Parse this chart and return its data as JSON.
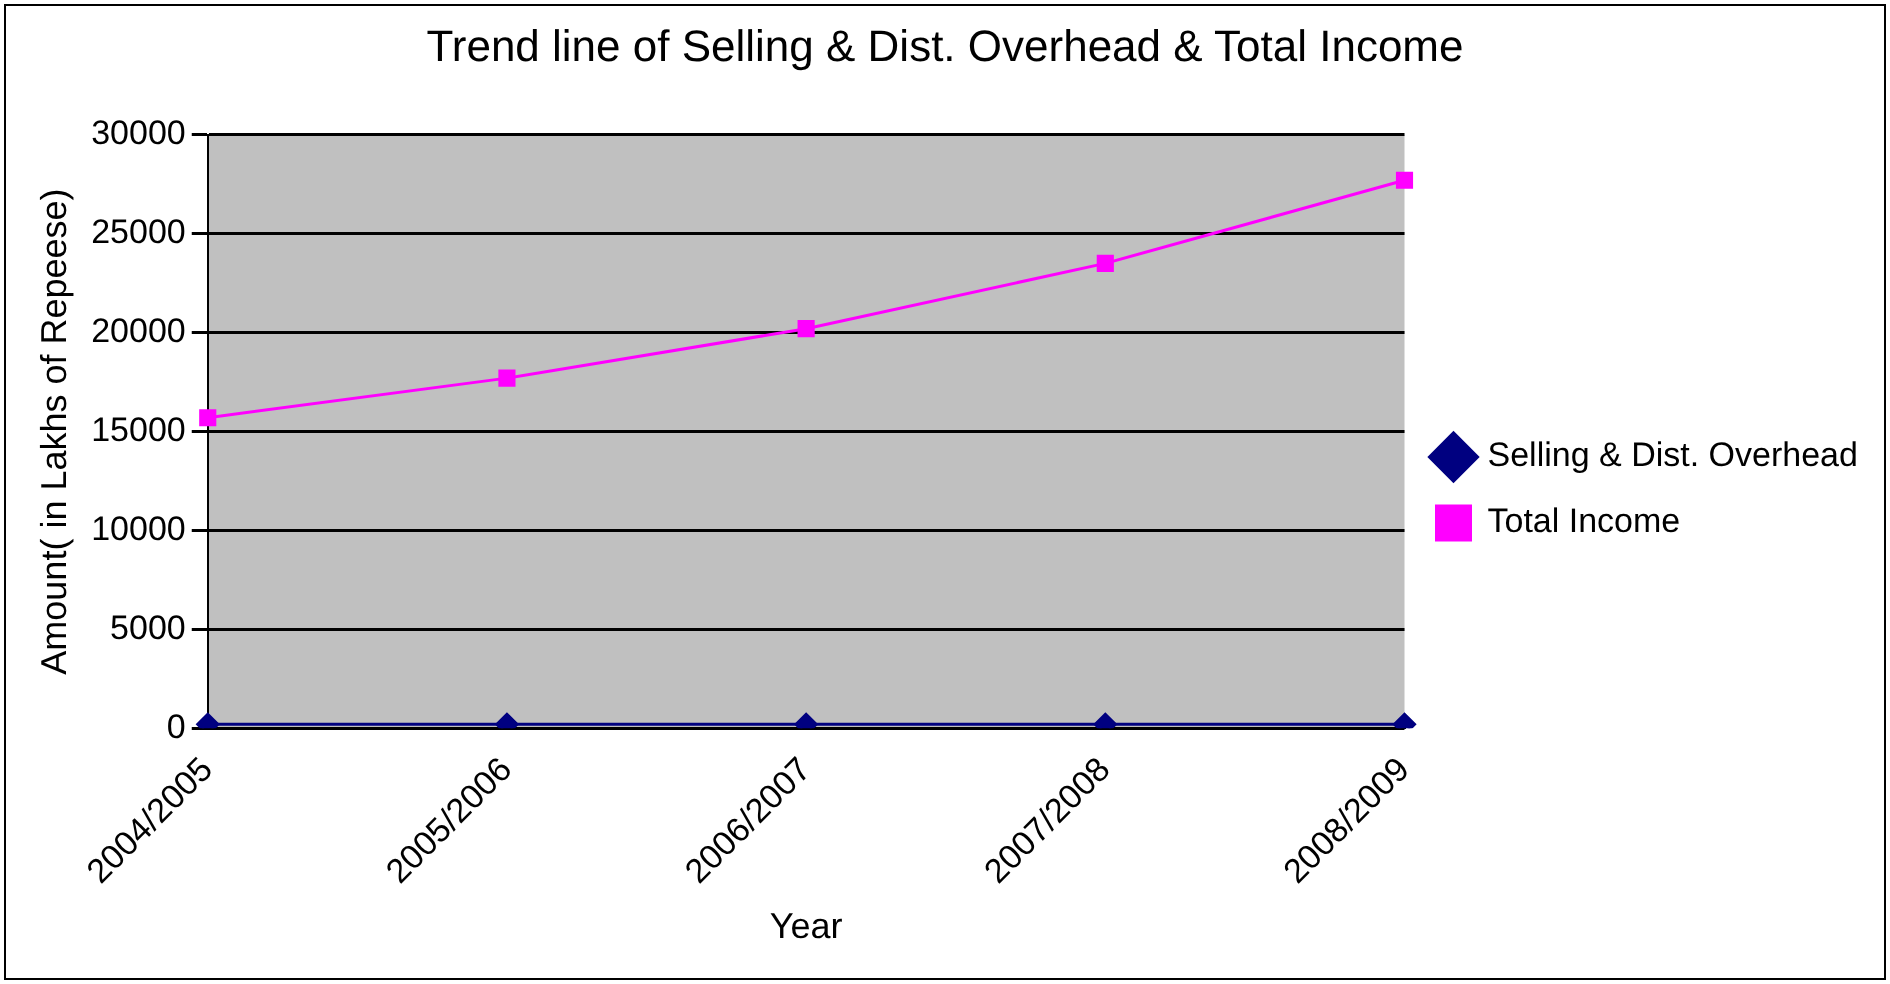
{
  "chart_data": {
    "type": "line",
    "title": "Trend line of Selling & Dist. Overhead & Total Income",
    "xlabel": "Year",
    "ylabel": "Amount( in Lakhs of Repeese)",
    "categories": [
      "2004/2005",
      "2005/2006",
      "2006/2007",
      "2007/2008",
      "2008/2009"
    ],
    "series": [
      {
        "name": "Selling & Dist. Overhead",
        "color": "#000080",
        "marker": "diamond",
        "values": [
          200,
          200,
          200,
          200,
          200
        ]
      },
      {
        "name": "Total Income",
        "color": "#ff00ff",
        "marker": "square",
        "values": [
          15700,
          17700,
          20200,
          23500,
          27700
        ]
      }
    ],
    "ylim": [
      0,
      30000
    ],
    "yticks": [
      0,
      5000,
      10000,
      15000,
      20000,
      25000,
      30000
    ],
    "grid": "y",
    "legend": "right"
  }
}
